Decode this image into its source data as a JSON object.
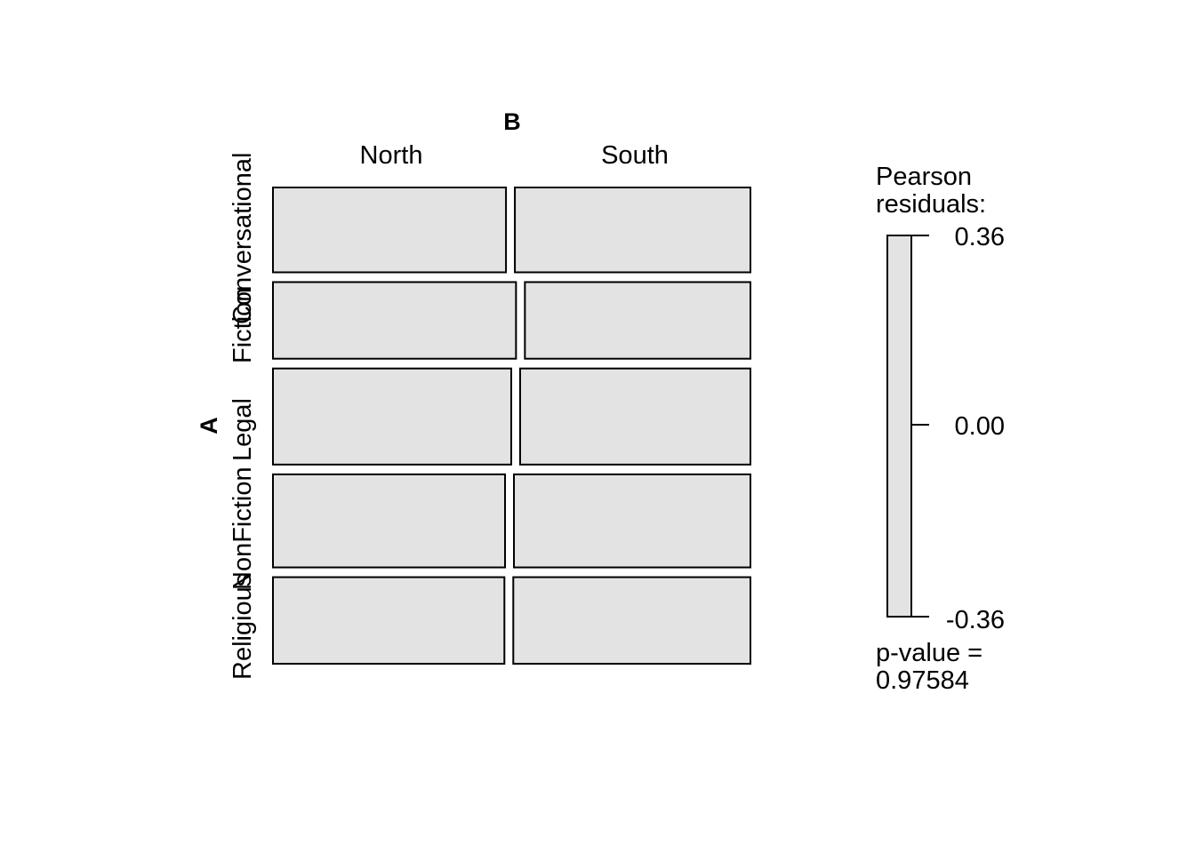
{
  "chart_data": {
    "type": "mosaic",
    "row_variable": "A",
    "column_variable": "B",
    "rows": [
      "Conversational",
      "Fiction",
      "Legal",
      "NonFiction",
      "Religious"
    ],
    "columns": [
      "North",
      "South"
    ],
    "row_proportions": [
      0.196,
      0.177,
      0.222,
      0.215,
      0.2
    ],
    "north_share": [
      0.4973,
      0.5187,
      0.5085,
      0.4953,
      0.4939
    ],
    "residual_fill": "#e3e3e3",
    "legend": {
      "title_line1": "Pearson",
      "title_line2": "residuals:",
      "max_label": "0.36",
      "mid_label": "0.00",
      "min_label": "-0.36",
      "range": [
        -0.36,
        0.36
      ]
    },
    "pvalue_line1": "p-value =",
    "pvalue_line2": "0.97584"
  }
}
